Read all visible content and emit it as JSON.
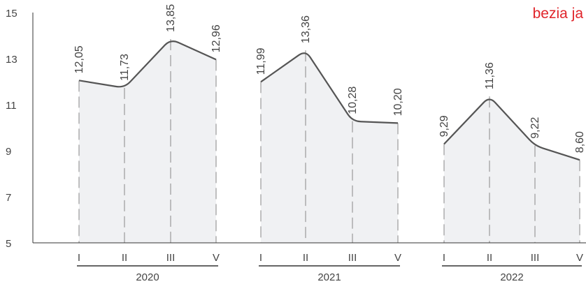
{
  "colors": {
    "accent": "#e0242a",
    "line": "#555555",
    "area": "#f0f1f3",
    "text": "#444444"
  },
  "chart_data": {
    "type": "area",
    "unit_label": "bezia ja",
    "ylim": [
      5,
      15
    ],
    "y_ticks": [
      5,
      7,
      9,
      11,
      13,
      15
    ],
    "groups": [
      {
        "label": "2020",
        "categories": [
          "I",
          "II",
          "III",
          "V"
        ],
        "values": [
          12.05,
          11.73,
          13.85,
          12.96
        ],
        "value_labels": [
          "12,05",
          "11,73",
          "13,85",
          "12,96"
        ]
      },
      {
        "label": "2021",
        "categories": [
          "I",
          "II",
          "III",
          "V"
        ],
        "values": [
          11.99,
          13.36,
          10.28,
          10.2
        ],
        "value_labels": [
          "11,99",
          "13,36",
          "10,28",
          "10,20"
        ]
      },
      {
        "label": "2022",
        "categories": [
          "I",
          "II",
          "III",
          "V"
        ],
        "values": [
          9.29,
          11.36,
          9.22,
          8.6
        ],
        "value_labels": [
          "9,29",
          "11,36",
          "9,22",
          "8,60"
        ]
      }
    ]
  }
}
